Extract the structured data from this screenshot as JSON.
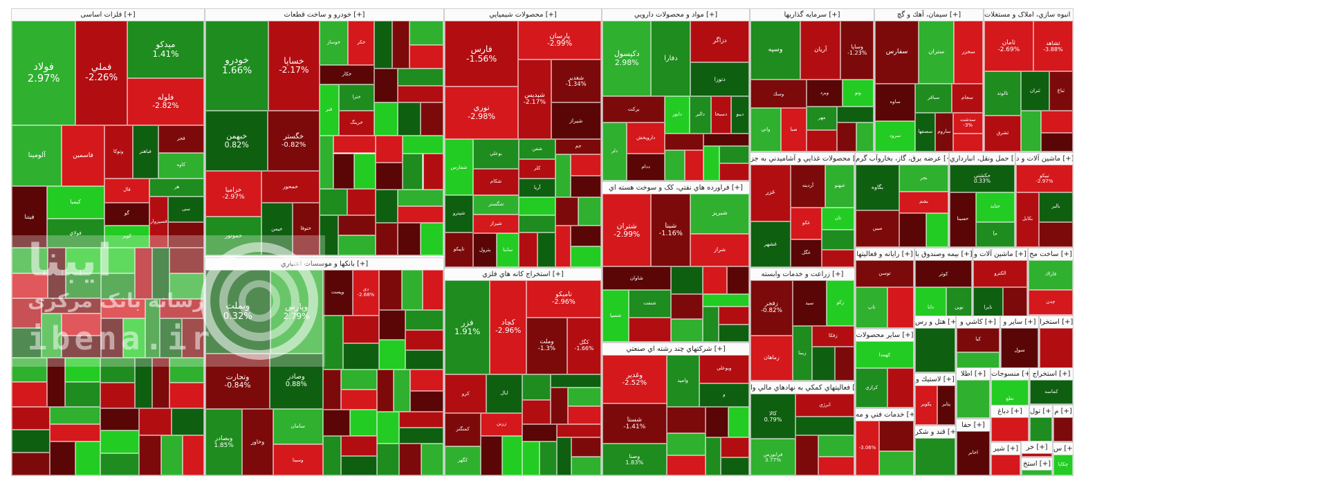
{
  "chart_data": {
    "type": "treemap",
    "title": "",
    "colors": {
      "green_strong": "#0f5f10",
      "green_mid": "#1e8c1e",
      "green_light": "#2fb02f",
      "green_bright": "#22cc22",
      "red_strong": "#7d0a0a",
      "red_mid": "#b20e12",
      "red_light": "#d4181c",
      "red_dark": "#5a0606"
    },
    "sectors": [
      {
        "title": "فلزات اساسی [+]",
        "tiles": [
          {
            "name": "فولاد",
            "change": "2.97%"
          },
          {
            "name": "فملي",
            "change": "-2.26%"
          },
          {
            "name": "ميدکو",
            "change": "1.41%"
          },
          {
            "name": "فلوله",
            "change": "-2.82%"
          },
          {
            "name": "آلومينا",
            "change": ""
          },
          {
            "name": "فاسمين",
            "change": ""
          },
          {
            "name": "فيتنا",
            "change": ""
          },
          {
            "name": "کيميا",
            "change": ""
          },
          {
            "name": "فولاي",
            "change": ""
          },
          {
            "name": "وتوکا",
            "change": ""
          },
          {
            "name": "فباهنر",
            "change": ""
          },
          {
            "name": "فجر",
            "change": ""
          },
          {
            "name": "کاوه",
            "change": ""
          },
          {
            "name": "فال",
            "change": ""
          },
          {
            "name": "گو",
            "change": ""
          },
          {
            "name": "کوير",
            "change": ""
          },
          {
            "name": "هر",
            "change": ""
          },
          {
            "name": "فسپزوار",
            "change": ""
          },
          {
            "name": "سی",
            "change": ""
          }
        ]
      },
      {
        "title": "خودرو و ساخت قطعات [+]",
        "tiles": [
          {
            "name": "خودرو",
            "change": "1.66%"
          },
          {
            "name": "خساپا",
            "change": "-2.17%"
          },
          {
            "name": "خبهمن",
            "change": "0.82%"
          },
          {
            "name": "خگستر",
            "change": "-0.82%"
          },
          {
            "name": "خزامیا",
            "change": "-2.97%"
          },
          {
            "name": "خموتور",
            "change": ""
          },
          {
            "name": "خمحور",
            "change": ""
          },
          {
            "name": "خيمن",
            "change": ""
          },
          {
            "name": "ختوقا",
            "change": ""
          },
          {
            "name": "خوساز",
            "change": ""
          },
          {
            "name": "خکر",
            "change": ""
          },
          {
            "name": "خکار",
            "change": ""
          },
          {
            "name": "فنر",
            "change": ""
          },
          {
            "name": "خترا",
            "change": ""
          },
          {
            "name": "خرینگ",
            "change": ""
          }
        ]
      },
      {
        "title": "بانکها و موسسات اعتباري [+]",
        "tiles": [
          {
            "name": "وبملت",
            "change": "0.32%"
          },
          {
            "name": "وپارس",
            "change": "2.79%"
          },
          {
            "name": "وتجارت",
            "change": "-0.84%"
          },
          {
            "name": "وصادر",
            "change": "0.88%"
          },
          {
            "name": "وبصادر",
            "change": "1.85%"
          },
          {
            "name": "وخاور",
            "change": ""
          },
          {
            "name": "سامان",
            "change": ""
          },
          {
            "name": "وسينا",
            "change": ""
          },
          {
            "name": "وپست",
            "change": ""
          },
          {
            "name": "دی",
            "change": "-2.68%"
          }
        ]
      },
      {
        "title": "محصولات شيميايي [+]",
        "tiles": [
          {
            "name": "فارس",
            "change": "-1.56%"
          },
          {
            "name": "نوري",
            "change": "-2.98%"
          },
          {
            "name": "پارسان",
            "change": "-2.99%"
          },
          {
            "name": "شپديس",
            "change": "-2.17%"
          },
          {
            "name": "شغدير",
            "change": "-1.34%"
          },
          {
            "name": "شيراز",
            "change": ""
          },
          {
            "name": "شفارس",
            "change": ""
          },
          {
            "name": "بوعلي",
            "change": ""
          },
          {
            "name": "شکام",
            "change": ""
          },
          {
            "name": "شپترو",
            "change": ""
          },
          {
            "name": "تاپيکو",
            "change": ""
          },
          {
            "name": "شگستر",
            "change": ""
          },
          {
            "name": "شيراز",
            "change": ""
          },
          {
            "name": "پترول",
            "change": ""
          },
          {
            "name": "ساينا",
            "change": ""
          },
          {
            "name": "شفن",
            "change": ""
          },
          {
            "name": "کلر",
            "change": ""
          },
          {
            "name": "آريا",
            "change": ""
          },
          {
            "name": "جم",
            "change": ""
          }
        ]
      },
      {
        "title": "استخراج کانه هاي فلزي [+]",
        "tiles": [
          {
            "name": "فزر",
            "change": "1.91%"
          },
          {
            "name": "کچاد",
            "change": "-2.96%"
          },
          {
            "name": "تامیکو",
            "change": "-2.96%"
          },
          {
            "name": "وملت",
            "change": "-1.3%"
          },
          {
            "name": "کگل",
            "change": "-1.66%"
          },
          {
            "name": "کرو",
            "change": ""
          },
          {
            "name": "ايال",
            "change": ""
          },
          {
            "name": "کمنگنز",
            "change": ""
          },
          {
            "name": "کگهر",
            "change": ""
          },
          {
            "name": "زرین",
            "change": ""
          }
        ]
      },
      {
        "title": "مواد و محصولات دارويي [+]",
        "tiles": [
          {
            "name": "دکپسول",
            "change": "2.98%"
          },
          {
            "name": "دفارا",
            "change": ""
          },
          {
            "name": "دزاگر",
            "change": ""
          },
          {
            "name": "دتوزا",
            "change": ""
          },
          {
            "name": "برکت",
            "change": ""
          },
          {
            "name": "دلر",
            "change": ""
          },
          {
            "name": "داروپخش",
            "change": ""
          },
          {
            "name": "ددام",
            "change": ""
          },
          {
            "name": "دابور",
            "change": ""
          },
          {
            "name": "دالبر",
            "change": ""
          },
          {
            "name": "دسبحا",
            "change": ""
          },
          {
            "name": "ديبو",
            "change": ""
          }
        ]
      },
      {
        "title": "فراورده هاي نفتي، کک و سوخت هسته اي [+]",
        "tiles": [
          {
            "name": "شتران",
            "change": "-2.99%"
          },
          {
            "name": "شبنا",
            "change": "-1.16%"
          },
          {
            "name": "شبريز",
            "change": ""
          },
          {
            "name": "شراز",
            "change": ""
          },
          {
            "name": "شاوان",
            "change": ""
          },
          {
            "name": "شسپا",
            "change": ""
          },
          {
            "name": "شنفت",
            "change": ""
          }
        ]
      },
      {
        "title": "شرکتهاي چند رشته اي صنعتي [+]",
        "tiles": [
          {
            "name": "وغدير",
            "change": "-2.52%"
          },
          {
            "name": "شستا",
            "change": "-1.41%"
          },
          {
            "name": "وصنا",
            "change": "1.83%"
          },
          {
            "name": "واميد",
            "change": ""
          },
          {
            "name": "وبوعلي",
            "change": ""
          },
          {
            "name": "و",
            "change": ""
          }
        ]
      },
      {
        "title": "سرمايه گذاريها [+]",
        "tiles": [
          {
            "name": "وسپه",
            "change": ""
          },
          {
            "name": "آريان",
            "change": ""
          },
          {
            "name": "وساپا",
            "change": "-1.23%"
          },
          {
            "name": "وسك",
            "change": ""
          },
          {
            "name": "واتي",
            "change": ""
          },
          {
            "name": "صبا",
            "change": ""
          },
          {
            "name": "وبرد",
            "change": ""
          },
          {
            "name": "وتو",
            "change": ""
          },
          {
            "name": "مهر",
            "change": ""
          }
        ]
      },
      {
        "title": "سيمان، آهك و گچ [+]",
        "tiles": [
          {
            "name": "سفارس",
            "change": ""
          },
          {
            "name": "ستران",
            "change": ""
          },
          {
            "name": "سخزر",
            "change": ""
          },
          {
            "name": "ساوه",
            "change": ""
          },
          {
            "name": "سرود",
            "change": ""
          },
          {
            "name": "سباقر",
            "change": ""
          },
          {
            "name": "سجام",
            "change": ""
          },
          {
            "name": "سصفها",
            "change": ""
          },
          {
            "name": "ساروم",
            "change": ""
          },
          {
            "name": "سدشت",
            "change": "-3%"
          }
        ]
      },
      {
        "title": "انبوه سازي، املاک و مستغلات [+]",
        "tiles": [
          {
            "name": "ثامان",
            "change": "-2.69%"
          },
          {
            "name": "ثشاهد",
            "change": "-3.88%"
          },
          {
            "name": "تالوند",
            "change": ""
          },
          {
            "name": "ثشرق",
            "change": ""
          },
          {
            "name": "ثتران",
            "change": ""
          },
          {
            "name": "ثباغ",
            "change": ""
          }
        ]
      },
      {
        "title": "محصولات غذايي و آشاميدني به جز [+]",
        "tiles": [
          {
            "name": "غزر",
            "change": ""
          },
          {
            "name": "غشهر",
            "change": ""
          },
          {
            "name": "آردينه",
            "change": ""
          },
          {
            "name": "غبهنو",
            "change": ""
          },
          {
            "name": "غکو",
            "change": ""
          },
          {
            "name": "غگل",
            "change": ""
          },
          {
            "name": "نان",
            "change": ""
          }
        ]
      },
      {
        "title": "زراعت و خدمات وابسته [+]",
        "tiles": [
          {
            "name": "زفجر",
            "change": "-0.82%"
          },
          {
            "name": "زماهان",
            "change": ""
          },
          {
            "name": "سيد",
            "change": ""
          },
          {
            "name": "زکو",
            "change": ""
          },
          {
            "name": "زبينا",
            "change": ""
          },
          {
            "name": "زفکا",
            "change": ""
          }
        ]
      },
      {
        "title": "فعاليتهاي کمکي به نهادهاي مالي وا [+]",
        "tiles": [
          {
            "name": "کالا",
            "change": "0.79%"
          },
          {
            "name": "فرابورس",
            "change": "3.77%"
          },
          {
            "name": "انرژي",
            "change": ""
          }
        ]
      },
      {
        "title": "عرضه برق، گاز، بخاروآب گرم [+]",
        "tiles": [
          {
            "name": "بگاوه",
            "change": ""
          },
          {
            "name": "مبين",
            "change": ""
          },
          {
            "name": "بجر",
            "change": ""
          },
          {
            "name": "بشم",
            "change": ""
          }
        ]
      },
      {
        "title": "حمل ونقل، انبارداري [+]",
        "tiles": [
          {
            "name": "حکشتی",
            "change": "0.33%"
          },
          {
            "name": "حسينا",
            "change": ""
          },
          {
            "name": "حتايد",
            "change": ""
          },
          {
            "name": "حآ",
            "change": ""
          }
        ]
      },
      {
        "title": "ماشين آلات و د [+]",
        "tiles": [
          {
            "name": "تیپکو",
            "change": "-2.97%"
          },
          {
            "name": "بكابل",
            "change": ""
          },
          {
            "name": "بالبر",
            "change": ""
          }
        ]
      },
      {
        "title": "رايانه و فعاليتها [+]",
        "tiles": [
          {
            "name": "توسن",
            "change": ""
          },
          {
            "name": "تاپ",
            "change": ""
          }
        ]
      },
      {
        "title": "بيمه وصندوق با [+]",
        "tiles": [
          {
            "name": "کوثر",
            "change": ""
          },
          {
            "name": "دانا",
            "change": ""
          },
          {
            "name": "نوين",
            "change": ""
          }
        ]
      },
      {
        "title": "ماشين آلات و [+]",
        "tiles": [
          {
            "name": "الكترو",
            "change": ""
          },
          {
            "name": "تابرا",
            "change": ""
          }
        ]
      },
      {
        "title": "ساخت مح [+]",
        "tiles": [
          {
            "name": "فاراك",
            "change": ""
          },
          {
            "name": "چدن",
            "change": ""
          }
        ]
      },
      {
        "title": "ساير محصولات [+]",
        "tiles": [
          {
            "name": "کهمدا",
            "change": ""
          },
          {
            "name": "کرازي",
            "change": ""
          }
        ]
      },
      {
        "title": "خدمات فني و مه [+]",
        "tiles": [
          {
            "name": "",
            "change": "-3.06%"
          }
        ]
      },
      {
        "title": "لاستيك و [+]",
        "tiles": [
          {
            "name": "پكوير",
            "change": ""
          },
          {
            "name": "پتاير",
            "change": ""
          }
        ]
      },
      {
        "title": "قند و شكر [+]",
        "tiles": []
      },
      {
        "title": "كاشي و [+]",
        "tiles": [
          {
            "name": "كيا",
            "change": ""
          }
        ]
      },
      {
        "title": "ساير و [+]",
        "tiles": [
          {
            "name": "سول",
            "change": ""
          }
        ]
      },
      {
        "title": "استخرا [+]",
        "tiles": []
      },
      {
        "title": "اطلا [+]",
        "tiles": []
      },
      {
        "title": "منسوجات [+]",
        "tiles": [
          {
            "name": "نطع",
            "change": ""
          }
        ]
      },
      {
        "title": "استخراج [+]",
        "tiles": [
          {
            "name": "كماسه",
            "change": ""
          }
        ]
      },
      {
        "title": "دباغ [+]",
        "tiles": []
      },
      {
        "title": "تول [+]",
        "tiles": []
      },
      {
        "title": "م [+]",
        "tiles": []
      },
      {
        "title": "حفا [+]",
        "tiles": [
          {
            "name": "اخابر",
            "change": ""
          }
        ]
      },
      {
        "title": "خر [+]",
        "tiles": []
      },
      {
        "title": "استخ [+]",
        "tiles": []
      },
      {
        "title": "س [+]",
        "tiles": [
          {
            "name": "چكاپا",
            "change": ""
          }
        ]
      },
      {
        "title": "هتل و رس [+]",
        "tiles": []
      },
      {
        "title": "شير [+]",
        "tiles": []
      }
    ]
  },
  "watermark": {
    "brand_fa": "ايبنا",
    "tagline_fa": "رسانه بانک مرکزی",
    "site": "ibena.ir"
  }
}
